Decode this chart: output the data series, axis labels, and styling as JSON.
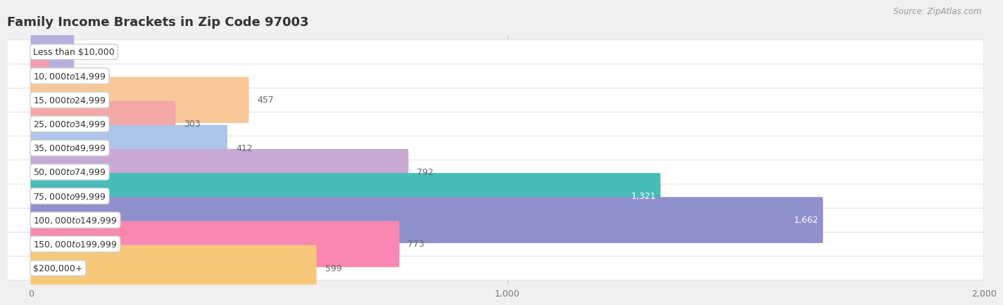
{
  "title": "Family Income Brackets in Zip Code 97003",
  "source": "Source: ZipAtlas.com",
  "categories": [
    "Less than $10,000",
    "$10,000 to $14,999",
    "$15,000 to $24,999",
    "$25,000 to $34,999",
    "$35,000 to $49,999",
    "$50,000 to $74,999",
    "$75,000 to $99,999",
    "$100,000 to $149,999",
    "$150,000 to $199,999",
    "$200,000+"
  ],
  "values": [
    90,
    39,
    457,
    303,
    412,
    792,
    1321,
    1662,
    773,
    599
  ],
  "bar_colors": [
    "#b3b0de",
    "#f59db0",
    "#f8c899",
    "#f5a8a8",
    "#adc5e8",
    "#c8aad5",
    "#47bdb8",
    "#9090cc",
    "#f888b0",
    "#f8c87a"
  ],
  "xlim": [
    -50,
    2000
  ],
  "xticks": [
    0,
    1000,
    2000
  ],
  "value_label_color_threshold": 800,
  "label_inside_color": "#ffffff",
  "label_outside_color": "#666666",
  "bg_color": "#f0f0f0",
  "row_bg_color": "#ffffff",
  "title_fontsize": 13,
  "source_fontsize": 8.5,
  "label_fontsize": 9,
  "tick_fontsize": 9,
  "category_fontsize": 9
}
